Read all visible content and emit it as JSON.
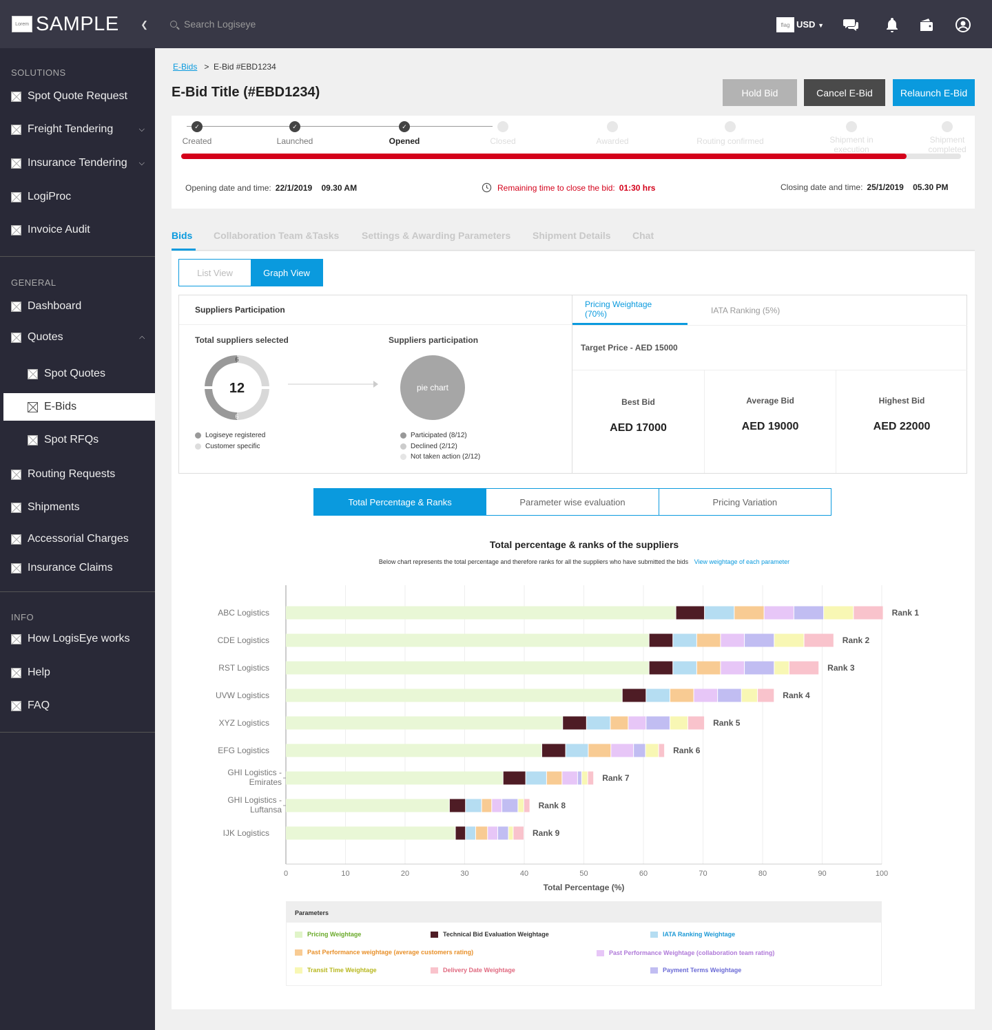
{
  "brand": {
    "logo_text": "Lorem",
    "name": "SAMPLE"
  },
  "sidebar": {
    "sections": [
      {
        "title": "SOLUTIONS",
        "items": [
          {
            "label": "Spot Quote Request"
          },
          {
            "label": "Freight Tendering"
          },
          {
            "label": "Insurance Tendering"
          },
          {
            "label": "LogiProc"
          },
          {
            "label": "Invoice Audit"
          }
        ]
      },
      {
        "title": "GENERAL",
        "items": [
          {
            "label": "Dashboard"
          },
          {
            "label": "Quotes"
          },
          {
            "label": "Spot Quotes"
          },
          {
            "label": "E-Bids"
          },
          {
            "label": "Spot RFQs"
          },
          {
            "label": "Routing Requests"
          },
          {
            "label": "Shipments"
          },
          {
            "label": "Accessorial Charges"
          },
          {
            "label": "Insurance Claims"
          }
        ]
      },
      {
        "title": "INFO",
        "items": [
          {
            "label": "How LogisEye works"
          },
          {
            "label": "Help"
          },
          {
            "label": "FAQ"
          }
        ]
      }
    ]
  },
  "topbar": {
    "search_placeholder": "Search Logiseye",
    "flag_text": "flag",
    "currency": "USD"
  },
  "breadcrumb": {
    "parent": "E-Bids",
    "separator": ">",
    "current": "E-Bid #EBD1234"
  },
  "page": {
    "title": "E-Bid Title (#EBD1234)"
  },
  "actions": {
    "hold": "Hold Bid",
    "cancel": "Cancel E-Bid",
    "relaunch": "Relaunch E-Bid"
  },
  "progress": {
    "steps": [
      {
        "label": "Created"
      },
      {
        "label": "Launched"
      },
      {
        "label": "Opened"
      },
      {
        "label": "Closed"
      },
      {
        "label": "Awarded"
      },
      {
        "label": "Routing confirmed"
      },
      {
        "label": "Shipment in execution"
      },
      {
        "label": "Shipment completed"
      }
    ],
    "opening_label": "Opening date and time:",
    "opening_value": "22/1/2019    09.30 AM",
    "remaining_label": "Remaining time to close the bid:",
    "remaining_value": "01:30 hrs",
    "closing_label": "Closing date and time:",
    "closing_value": "25/1/2019    05.30 PM",
    "elapsed_fraction": 0.93
  },
  "tabs": [
    "Bids",
    "Collaboration Team &Tasks",
    "Settings & Awarding Parameters",
    "Shipment Details",
    "Chat"
  ],
  "view_toggle": {
    "list": "List View",
    "graph": "Graph View"
  },
  "participation": {
    "title": "Suppliers Participation",
    "total_label": "Total suppliers selected",
    "total": "12",
    "seg_top": "6",
    "seg_bottom": "6",
    "legend_total": [
      "Logiseye registered",
      "Customer specific"
    ],
    "participation_label": "Suppliers participation",
    "pie_text": "pie chart",
    "legend_participation": [
      "Participated (8/12)",
      "Declined (2/12)",
      "Not taken action (2/12)"
    ]
  },
  "pricing": {
    "tabs": [
      "Pricing Weightage (70%)",
      "IATA Ranking (5%)"
    ],
    "target": "Target Price - AED 15000",
    "best_label": "Best Bid",
    "best_value": "AED 17000",
    "avg_label": "Average Bid",
    "avg_value": "AED 19000",
    "high_label": "Highest Bid",
    "high_value": "AED 22000"
  },
  "chart_tabs": [
    "Total Percentage & Ranks",
    "Parameter wise evaluation",
    "Pricing Variation"
  ],
  "chart_heading": {
    "title": "Total percentage & ranks of the suppliers",
    "subtitle": "Below chart represents the total percentage and therefore ranks for all the suppliers who have submitted the bids",
    "link": "View weightage of each parameter"
  },
  "chart_data": {
    "type": "bar",
    "orientation": "horizontal",
    "stacked": true,
    "xlabel": "Total Percentage (%)",
    "xlim": [
      0,
      100
    ],
    "xticks": [
      0,
      10,
      20,
      30,
      40,
      50,
      60,
      70,
      80,
      90,
      100
    ],
    "categories": [
      "ABC Logistics",
      "CDE Logistics",
      "RST Logistics",
      "UVW Logistics",
      "XYZ Logistics",
      "EFG Logistics",
      "GHI Logistics - Emirates",
      "GHI Logistics - Luftansa",
      "IJK Logistics"
    ],
    "ranks": [
      "Rank 1",
      "Rank 2",
      "Rank 3",
      "Rank 4",
      "Rank 5",
      "Rank 6",
      "Rank 7",
      "Rank 8",
      "Rank 9"
    ],
    "series": [
      {
        "name": "Pricing Weightage",
        "color": "#e9f7d6",
        "values": [
          65.5,
          61,
          61,
          56.5,
          46.5,
          43,
          36.5,
          27.5,
          28.5
        ]
      },
      {
        "name": "Technical Bid Evaluation Weightage",
        "color": "#4e1c25",
        "values": [
          4.8,
          4,
          4,
          4,
          4,
          4,
          3.8,
          2.7,
          1.7
        ]
      },
      {
        "name": "IATA Ranking Weightage",
        "color": "#b5ddf2",
        "values": [
          5,
          4,
          4,
          4,
          4,
          3.8,
          3.5,
          2.7,
          1.7
        ]
      },
      {
        "name": "Past Performance weightage (average customers rating)",
        "color": "#f8cb93",
        "values": [
          5,
          4,
          4,
          4,
          3,
          3.8,
          2.6,
          1.7,
          2
        ]
      },
      {
        "name": "Past Performance Weightage (collaboration team rating)",
        "color": "#e7c6f7",
        "values": [
          5,
          4,
          4,
          4,
          3,
          3.8,
          2.6,
          1.7,
          1.7
        ]
      },
      {
        "name": "Payment Terms Weightage",
        "color": "#c1bdf2",
        "values": [
          5,
          5,
          5,
          4,
          4,
          2,
          0.7,
          2.7,
          1.8
        ]
      },
      {
        "name": "Transit Time Weightage",
        "color": "#f8f7b4",
        "values": [
          5,
          5,
          2.5,
          2.7,
          3,
          2.2,
          1,
          1,
          0.8
        ]
      },
      {
        "name": "Delivery Date Weightage",
        "color": "#f9c3cc",
        "values": [
          5,
          5,
          5,
          2.8,
          2.8,
          1,
          1,
          1,
          1.8
        ]
      }
    ]
  },
  "legend": {
    "title": "Parameters",
    "items": [
      {
        "label": "Pricing Weightage",
        "color": "#e0f4c8",
        "text_color": "#6aaa2a"
      },
      {
        "label": "Technical Bid Evaluation Weightage",
        "color": "#4e1c25",
        "text_color": "#333333"
      },
      {
        "label": "IATA Ranking Weightage",
        "color": "#b5ddf2",
        "text_color": "#1f9ad6"
      },
      {
        "label": "Past Performance weightage (average customers rating)",
        "color": "#f8cb93",
        "text_color": "#e8902a"
      },
      {
        "label": "Past Performance Weightage (collaboration team rating)",
        "color": "#e7c6f7",
        "text_color": "#b07ad9"
      },
      {
        "label": "Transit Time Weightage",
        "color": "#f8f7b4",
        "text_color": "#b8b820"
      },
      {
        "label": "Delivery Date Weightage",
        "color": "#f9c3cc",
        "text_color": "#e06a80"
      },
      {
        "label": "Payment Terms Weightage",
        "color": "#c1bdf2",
        "text_color": "#6b6bd6"
      }
    ]
  },
  "colors": {
    "accent": "#0a9ade",
    "danger": "#d4001a",
    "sidebar": "#292937",
    "topbar": "#383846"
  }
}
